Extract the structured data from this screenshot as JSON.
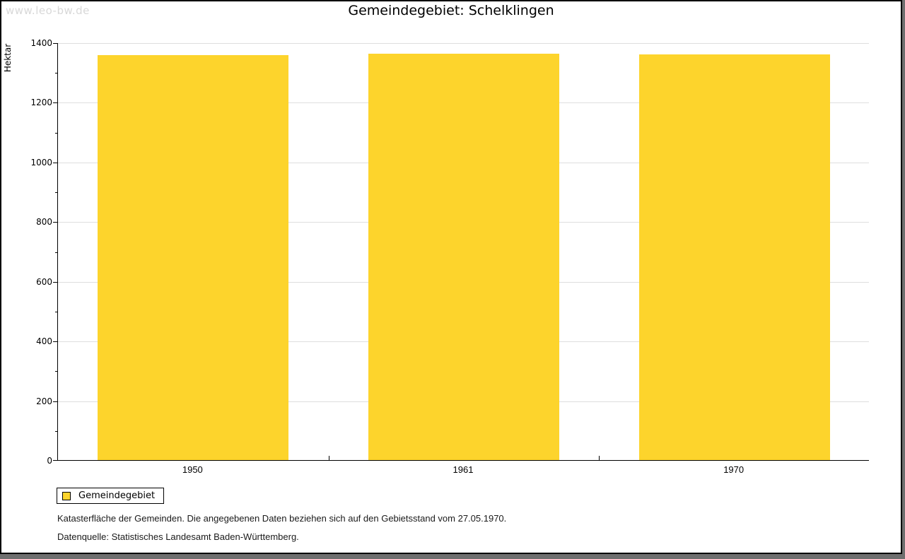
{
  "watermark": "www.leo-bw.de",
  "title": "Gemeindegebiet: Schelklingen",
  "chart_data": {
    "type": "bar",
    "title": "Gemeindegebiet: Schelklingen",
    "categories": [
      "1950",
      "1961",
      "1970"
    ],
    "series": [
      {
        "name": "Gemeindegebiet",
        "values": [
          1357,
          1362,
          1359
        ]
      }
    ],
    "xlabel": "",
    "ylabel": "Hektar",
    "ylim": [
      0,
      1400
    ],
    "ytick_interval": 200,
    "ytick_minor_interval": 100,
    "grid": true,
    "legend_position": "bottom-left",
    "bar_color": "#FDD42C"
  },
  "legend": {
    "label": "Gemeindegebiet",
    "swatch_color": "#FDD42C"
  },
  "footnotes": [
    "Katasterfläche der Gemeinden. Die angegebenen Daten beziehen sich auf den Gebietsstand vom 27.05.1970.",
    "Datenquelle: Statistisches Landesamt Baden-Württemberg."
  ],
  "colors": {
    "bar": "#FDD42C",
    "gridline": "#DEDEDE",
    "axis": "#000000",
    "watermark": "#D8D8D8",
    "frame_shadow": "#6F6F6F",
    "background": "#FFFFFF"
  }
}
